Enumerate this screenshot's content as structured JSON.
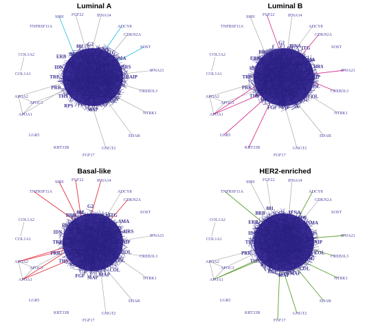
{
  "panels": [
    {
      "title": "Luminal A",
      "color": "#33c3e0",
      "highlighted": [
        "SHH",
        "ADCY8",
        "SOST"
      ]
    },
    {
      "title": "Luminal B",
      "color": "#d8358f",
      "highlighted": [
        "FGF22",
        "CDKN2A",
        "IFNA21",
        "CREB3L3",
        "LGR5",
        "KRT33B",
        "APOA1"
      ]
    },
    {
      "title": "Basal-like",
      "color": "#e0303a",
      "highlighted": [
        "TNFRSF11A",
        "SHH",
        "FGF22",
        "IFNA14",
        "CDKN2A",
        "APOA2",
        "APOA1"
      ]
    },
    {
      "title": "HER2-enriched",
      "color": "#5e9e2e",
      "highlighted": [
        "TNFRSF11A",
        "ADCY8",
        "IFNA21",
        "CREB3L3",
        "NTRK1",
        "EDAR",
        "GNGT2",
        "FGF17",
        "APOA1"
      ]
    }
  ],
  "outer_genes": [
    "SHH",
    "FGF22",
    "IFNA14",
    "TNFRSF11A",
    "ADCY8",
    "CDKN2A",
    "SOST",
    "COL1A2",
    "COL1A1",
    "IFNA21",
    "APOA2",
    "APOC3",
    "APOA1",
    "CREB3L3",
    "NTRK1",
    "LGR5",
    "EDAR",
    "KRT33B",
    "GNGT2",
    "FGF17"
  ],
  "cluster_labels": [
    "BAIP",
    "COL",
    "COL",
    "COL",
    "MAP",
    "MAP",
    "FGF",
    "RPS",
    "THS",
    "PRR",
    "TRP",
    "IDN",
    "ERB",
    "BRB",
    "881",
    "G2",
    "IFNA",
    "ITG",
    "SMA",
    "HRS"
  ],
  "colors": {
    "node": "#3d2f9a",
    "node_edge": "#2a2080",
    "edge_gray": "#9a9a9a",
    "label": "#4b3fa0"
  }
}
